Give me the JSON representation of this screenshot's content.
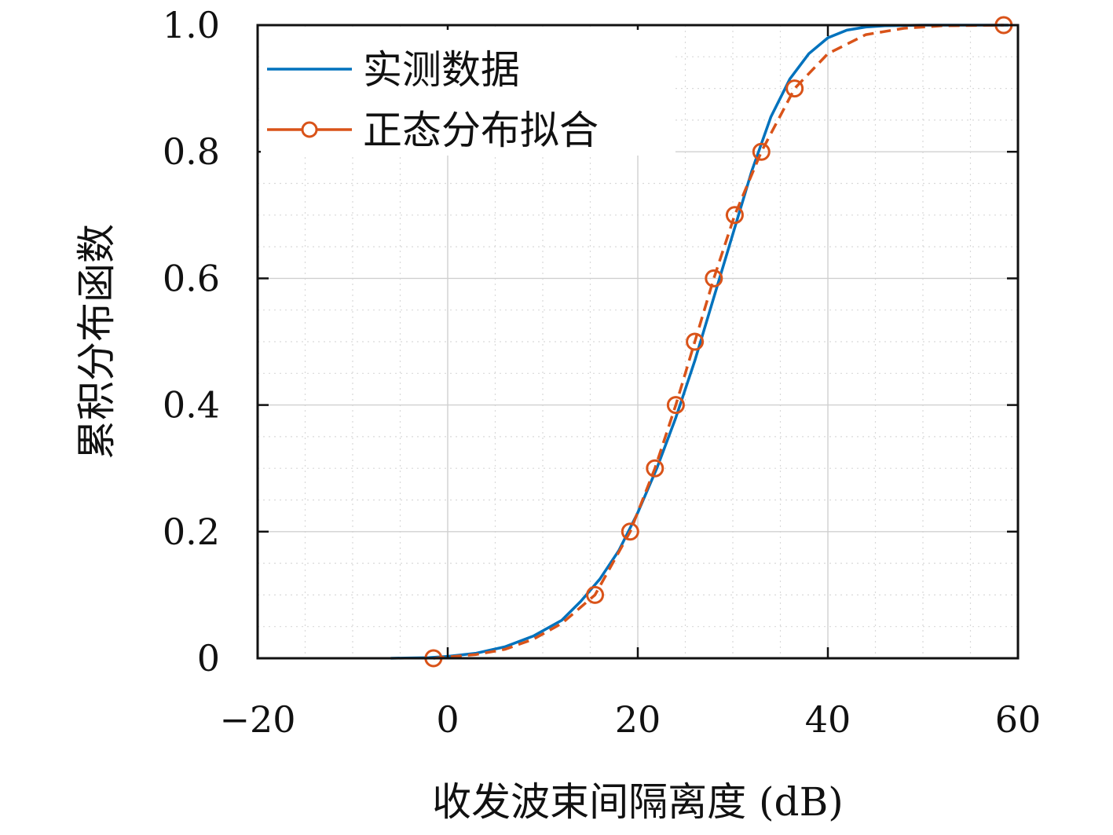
{
  "chart_data": {
    "type": "line",
    "title": "",
    "xlabel": "收发波束间隔离度 (dB)",
    "ylabel": "累积分布函数",
    "xlim": [
      -20,
      60
    ],
    "ylim": [
      0,
      1
    ],
    "xticks": [
      -20,
      0,
      20,
      40,
      60
    ],
    "xtick_labels": [
      "−20",
      "0",
      "20",
      "40",
      "60"
    ],
    "yticks": [
      0,
      0.2,
      0.4,
      0.6,
      0.8,
      1.0
    ],
    "ytick_labels": [
      "0",
      "0.2",
      "0.4",
      "0.6",
      "0.8",
      "1.0"
    ],
    "grid": true,
    "minor_grid": true,
    "legend_position": "top-left",
    "series": [
      {
        "name": "实测数据",
        "color": "#0072BD",
        "style": "solid",
        "marker": "none",
        "x": [
          -6,
          -2,
          0,
          3,
          6,
          9,
          12,
          14,
          16,
          18,
          20,
          22,
          24,
          26,
          28,
          30,
          32,
          34,
          36,
          38,
          40,
          42,
          44,
          46,
          50,
          55,
          59
        ],
        "y": [
          0,
          0.001,
          0.003,
          0.008,
          0.018,
          0.035,
          0.06,
          0.09,
          0.125,
          0.17,
          0.23,
          0.3,
          0.38,
          0.47,
          0.57,
          0.67,
          0.77,
          0.855,
          0.915,
          0.955,
          0.98,
          0.992,
          0.997,
          0.999,
          1.0,
          1.0,
          1.0
        ]
      },
      {
        "name": "正态分布拟合",
        "color": "#D95319",
        "style": "dashed",
        "marker": "circle",
        "x": [
          -1.5,
          0,
          3,
          6,
          9,
          12,
          15.5,
          19.2,
          21.8,
          24,
          26,
          28,
          30.2,
          33,
          36.5,
          40,
          44,
          48,
          52,
          58.5
        ],
        "y": [
          0,
          0.002,
          0.006,
          0.014,
          0.03,
          0.055,
          0.1,
          0.2,
          0.3,
          0.4,
          0.5,
          0.6,
          0.7,
          0.8,
          0.9,
          0.955,
          0.985,
          0.995,
          0.999,
          1.0
        ],
        "marker_x": [
          -1.5,
          15.5,
          19.2,
          21.8,
          24,
          26,
          28,
          30.2,
          33,
          36.5,
          58.5
        ],
        "marker_y": [
          0,
          0.1,
          0.2,
          0.3,
          0.4,
          0.5,
          0.6,
          0.7,
          0.8,
          0.9,
          1.0
        ]
      }
    ]
  }
}
